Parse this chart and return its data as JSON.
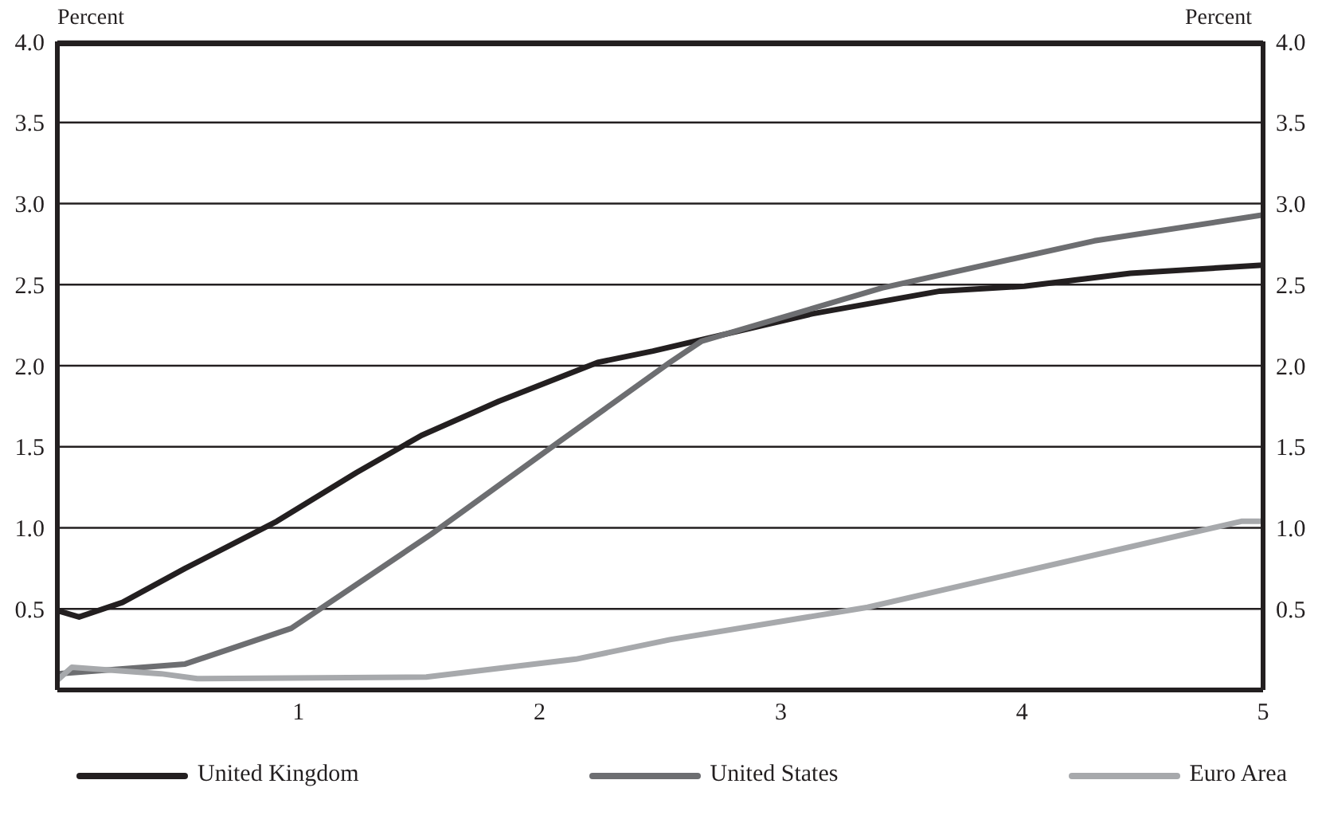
{
  "chart_data": {
    "type": "line",
    "ylabel": "Percent",
    "y2label": "Percent",
    "xlim": [
      0,
      5
    ],
    "xticks": [
      1,
      2,
      3,
      4,
      5
    ],
    "ylim": [
      0,
      4
    ],
    "yticks": [
      0.5,
      {
        "value": 1,
        "label": "1.0"
      },
      1.5,
      {
        "value": 2,
        "label": "2.0"
      },
      2.5,
      {
        "value": 3,
        "label": "3.0"
      },
      3.5,
      {
        "value": 4,
        "label": "4.0"
      }
    ],
    "y2lim": [
      0,
      4
    ],
    "y2ticks": [
      0.5,
      {
        "value": 1,
        "label": "1.0"
      },
      1.5,
      {
        "value": 2,
        "label": "2.0"
      },
      2.5,
      {
        "value": 3,
        "label": "3.0"
      },
      3.5,
      {
        "value": 4,
        "label": "4.0"
      }
    ],
    "grid": "y",
    "legend": "bottom",
    "marker": "none",
    "line_style": "solid",
    "series": [
      {
        "name": "United Kingdom",
        "color": "#231f20",
        "x": [
          0,
          0.09,
          0.27,
          0.53,
          0.91,
          1.24,
          1.51,
          1.83,
          2.24,
          2.47,
          3.13,
          3.66,
          4.01,
          4.45,
          5
        ],
        "values": [
          0.49,
          0.45,
          0.54,
          0.75,
          1.04,
          1.34,
          1.57,
          1.78,
          2.02,
          2.09,
          2.32,
          2.46,
          2.49,
          2.57,
          2.62
        ]
      },
      {
        "name": "United States",
        "color": "#6d6e71",
        "x": [
          0,
          0.53,
          0.97,
          1.55,
          2.08,
          2.54,
          2.67,
          3.42,
          4.3,
          5
        ],
        "values": [
          0.1,
          0.16,
          0.38,
          0.96,
          1.53,
          2.02,
          2.15,
          2.48,
          2.77,
          2.93
        ]
      },
      {
        "name": "Euro Area",
        "color": "#a7a9ac",
        "x": [
          0,
          0.06,
          0.43,
          0.58,
          1.53,
          2.15,
          2.54,
          3.36,
          4.91,
          5
        ],
        "values": [
          0.06,
          0.14,
          0.1,
          0.07,
          0.08,
          0.19,
          0.31,
          0.51,
          1.04,
          1.04
        ]
      }
    ]
  }
}
